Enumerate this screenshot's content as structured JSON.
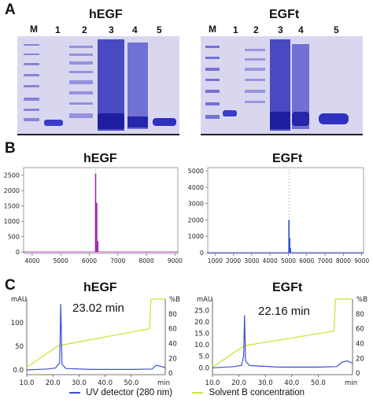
{
  "panels": {
    "A": "A",
    "B": "B",
    "C": "C"
  },
  "panelA": {
    "left_title": "hEGF",
    "right_title": "EGFt",
    "left_lanes": [
      "M",
      "1",
      "2",
      "3",
      "4",
      "5"
    ],
    "right_lanes": [
      "M",
      "1",
      "2",
      "3",
      "4",
      "5"
    ]
  },
  "panelB": {
    "left_title": "hEGF",
    "right_title": "EGFt"
  },
  "panelC": {
    "left_title": "hEGF",
    "right_title": "EGFt",
    "left_annotation": "23.02 min",
    "right_annotation": "22.16 min",
    "y_unit_left": "mAU",
    "y_unit_right": "%B",
    "x_unit": "min"
  },
  "legend": {
    "uv": "UV detector (280 nm)",
    "solvent": "Solvent B concentration"
  },
  "colors": {
    "gel_bg": "#d6d4ef",
    "band": "#3b3cc8",
    "ms_left": "#9b2aa8",
    "ms_right": "#2a4fd0",
    "uv": "#3a4fd6",
    "solvent": "#c8e83a"
  },
  "chart_data": [
    {
      "type": "line",
      "panel": "B-left",
      "title": "hEGF",
      "xlim": [
        3700,
        9100
      ],
      "ylim": [
        -50,
        2750
      ],
      "xticks": [
        4000,
        5000,
        6000,
        7000,
        8000,
        9000
      ],
      "yticks": [
        0,
        500,
        1000,
        1500,
        2000,
        2500
      ],
      "series": [
        {
          "peaks": [
            [
              6220,
              2550
            ],
            [
              6260,
              1600
            ],
            [
              6300,
              350
            ]
          ]
        }
      ]
    },
    {
      "type": "line",
      "panel": "B-right",
      "title": "EGFt",
      "xlim": [
        600,
        9100
      ],
      "ylim": [
        -50,
        5200
      ],
      "xticks": [
        1000,
        2000,
        3000,
        4000,
        5000,
        6000,
        7000,
        8000,
        9000
      ],
      "yticks": [
        0,
        1000,
        2000,
        3000,
        4000,
        5000
      ],
      "series": [
        {
          "peaks": [
            [
              5030,
              2000
            ],
            [
              5070,
              900
            ],
            [
              5110,
              300
            ]
          ]
        }
      ]
    },
    {
      "type": "line",
      "panel": "C-left",
      "title": "hEGF",
      "xlim": [
        10,
        63
      ],
      "ylim_left": [
        -10,
        150
      ],
      "ylim_right": [
        -2,
        100
      ],
      "xticks": [
        10.0,
        20.0,
        30.0,
        40.0,
        50.0
      ],
      "yticks_left": [
        0.0,
        50,
        100
      ],
      "yticks_right": [
        0,
        20,
        40,
        60,
        80
      ],
      "series": [
        {
          "name": "UV detector (280 nm)",
          "x": [
            10,
            18,
            21,
            22.6,
            23.02,
            23.5,
            25,
            35,
            50,
            58,
            59.5,
            61,
            63
          ],
          "y": [
            0,
            2,
            4,
            15,
            140,
            12,
            3,
            1,
            1,
            2,
            10,
            8,
            5
          ]
        },
        {
          "name": "Solvent B concentration",
          "x": [
            10,
            22,
            57,
            57.5,
            63
          ],
          "y": [
            8,
            37,
            60,
            100,
            100
          ]
        }
      ]
    },
    {
      "type": "line",
      "panel": "C-right",
      "title": "EGFt",
      "xlim": [
        10,
        63
      ],
      "ylim_left": [
        -3,
        30
      ],
      "ylim_right": [
        -2,
        100
      ],
      "xticks": [
        10.0,
        20.0,
        30.0,
        40.0,
        50.0
      ],
      "yticks_left": [
        0.0,
        5.0,
        10.0,
        15.0,
        20.0,
        25.0
      ],
      "yticks_right": [
        0,
        20,
        40,
        60,
        80
      ],
      "series": [
        {
          "name": "UV detector (280 nm)",
          "x": [
            10,
            18,
            21,
            21.8,
            22.16,
            22.5,
            24,
            35,
            50,
            57,
            59,
            61,
            63
          ],
          "y": [
            0,
            0.5,
            1,
            5,
            23,
            3,
            1,
            0.3,
            0.3,
            0.5,
            2.5,
            3,
            2
          ]
        },
        {
          "name": "Solvent B concentration",
          "x": [
            10,
            22,
            56,
            56.5,
            63
          ],
          "y": [
            8,
            37,
            57,
            100,
            100
          ]
        }
      ]
    }
  ]
}
